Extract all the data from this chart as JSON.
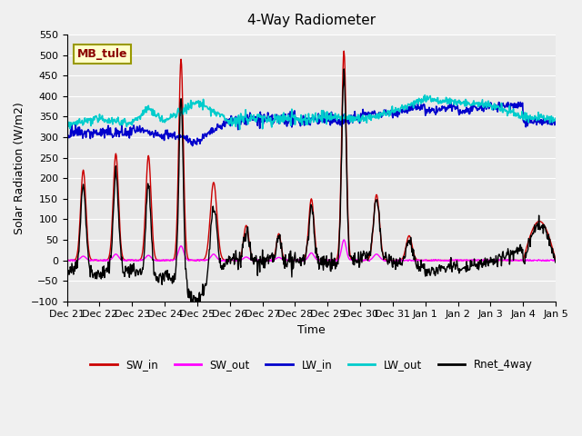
{
  "title": "4-Way Radiometer",
  "ylabel": "Solar Radiation (W/m2)",
  "xlabel": "Time",
  "ylim": [
    -100,
    550
  ],
  "yticks": [
    -100,
    -50,
    0,
    50,
    100,
    150,
    200,
    250,
    300,
    350,
    400,
    450,
    500,
    550
  ],
  "fig_bg_color": "#f0f0f0",
  "plot_bg_color": "#e8e8e8",
  "station_label": "MB_tule",
  "legend_entries": [
    "SW_in",
    "SW_out",
    "LW_in",
    "LW_out",
    "Rnet_4way"
  ],
  "line_colors": {
    "SW_in": "#cc0000",
    "SW_out": "#ff00ff",
    "LW_in": "#0000cc",
    "LW_out": "#00cccc",
    "Rnet_4way": "#000000"
  },
  "x_tick_labels": [
    "Dec 21",
    "Dec 22",
    "Dec 23",
    "Dec 24",
    "Dec 25",
    "Dec 26",
    "Dec 27",
    "Dec 28",
    "Dec 29",
    "Dec 30",
    "Dec 31",
    "Jan 1",
    "Jan 2",
    "Jan 3",
    "Jan 4",
    "Jan 5"
  ],
  "num_days": 16,
  "pts_per_day": 60
}
